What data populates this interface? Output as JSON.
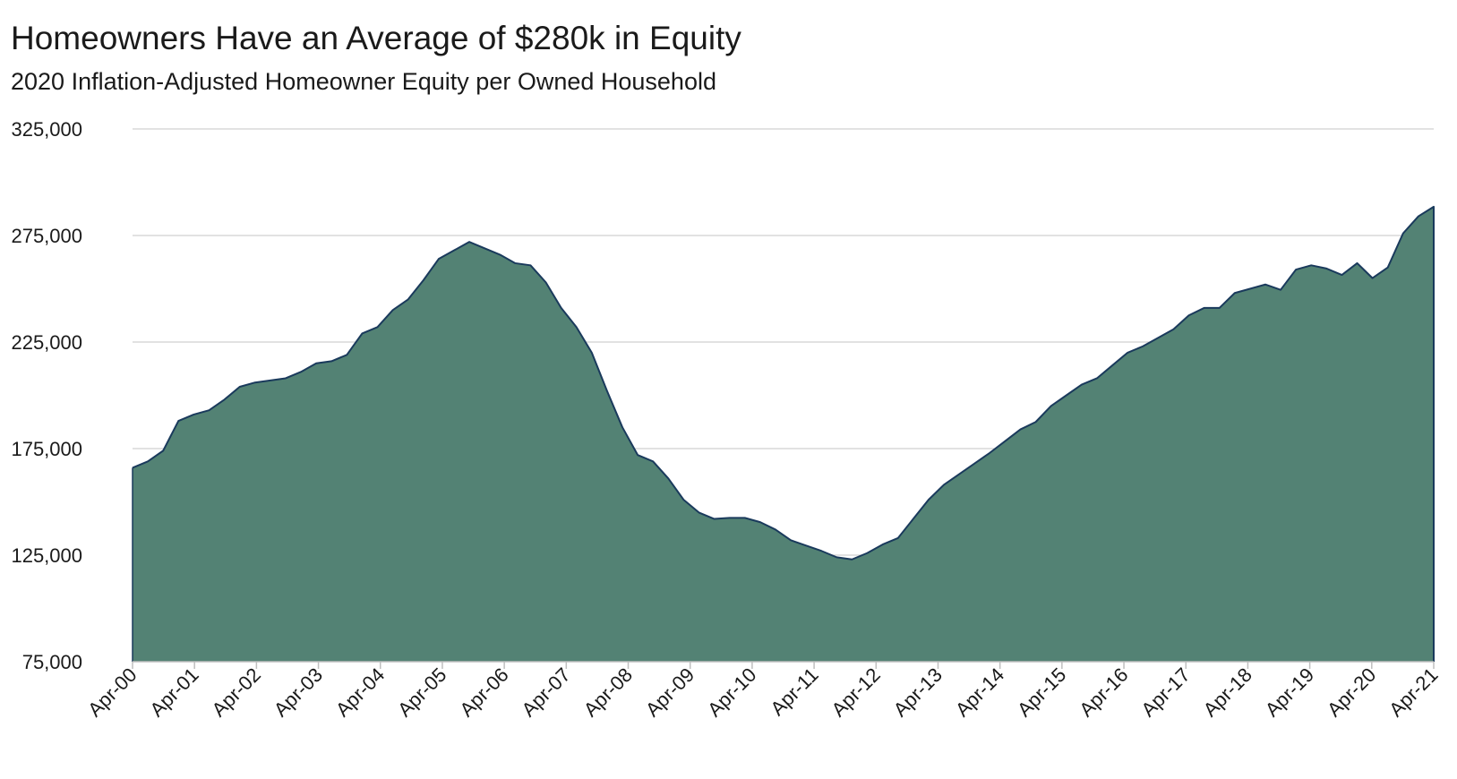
{
  "chart_data": {
    "type": "area",
    "title": "Homeowners Have an Average of $280k in Equity",
    "subtitle": "2020 Inflation-Adjusted Homeowner Equity per Owned Household",
    "xlabel": "",
    "ylabel": "",
    "ylim": [
      75000,
      325000
    ],
    "yticks": [
      "75,000",
      "125,000",
      "175,000",
      "225,000",
      "275,000",
      "325,000"
    ],
    "ytick_values": [
      75000,
      125000,
      175000,
      225000,
      275000,
      325000
    ],
    "xticks": [
      "Apr-00",
      "Apr-01",
      "Apr-02",
      "Apr-03",
      "Apr-04",
      "Apr-05",
      "Apr-06",
      "Apr-07",
      "Apr-08",
      "Apr-09",
      "Apr-10",
      "Apr-11",
      "Apr-12",
      "Apr-13",
      "Apr-14",
      "Apr-15",
      "Apr-16",
      "Apr-17",
      "Apr-18",
      "Apr-19",
      "Apr-20",
      "Apr-21"
    ],
    "grid": true,
    "fill_color": "#538274",
    "line_color": "#1a3a5c",
    "series": [
      {
        "x_start": "Apr-00",
        "frequency": "quarterly",
        "values": [
          166000,
          169000,
          174000,
          188000,
          191000,
          193000,
          198000,
          204000,
          206000,
          207000,
          208000,
          211000,
          215000,
          216000,
          219000,
          229000,
          232000,
          240000,
          245000,
          254000,
          264000,
          268000,
          272000,
          269000,
          266000,
          262000,
          261000,
          253000,
          241000,
          232000,
          220000,
          202000,
          185000,
          172000,
          169000,
          161000,
          151000,
          145000,
          142000,
          142500,
          142500,
          140500,
          137000,
          132000,
          129500,
          127000,
          124000,
          123000,
          126000,
          130000,
          133000,
          142000,
          151000,
          158000,
          163000,
          168000,
          173000,
          178500,
          184000,
          187500,
          195000,
          200000,
          205000,
          208000,
          214000,
          220000,
          223000,
          227000,
          231000,
          237500,
          241000,
          241000,
          248000,
          250000,
          252000,
          249500,
          259000,
          261000,
          259500,
          256500,
          262000,
          255000,
          260000,
          276000,
          284000,
          288500
        ]
      }
    ]
  }
}
